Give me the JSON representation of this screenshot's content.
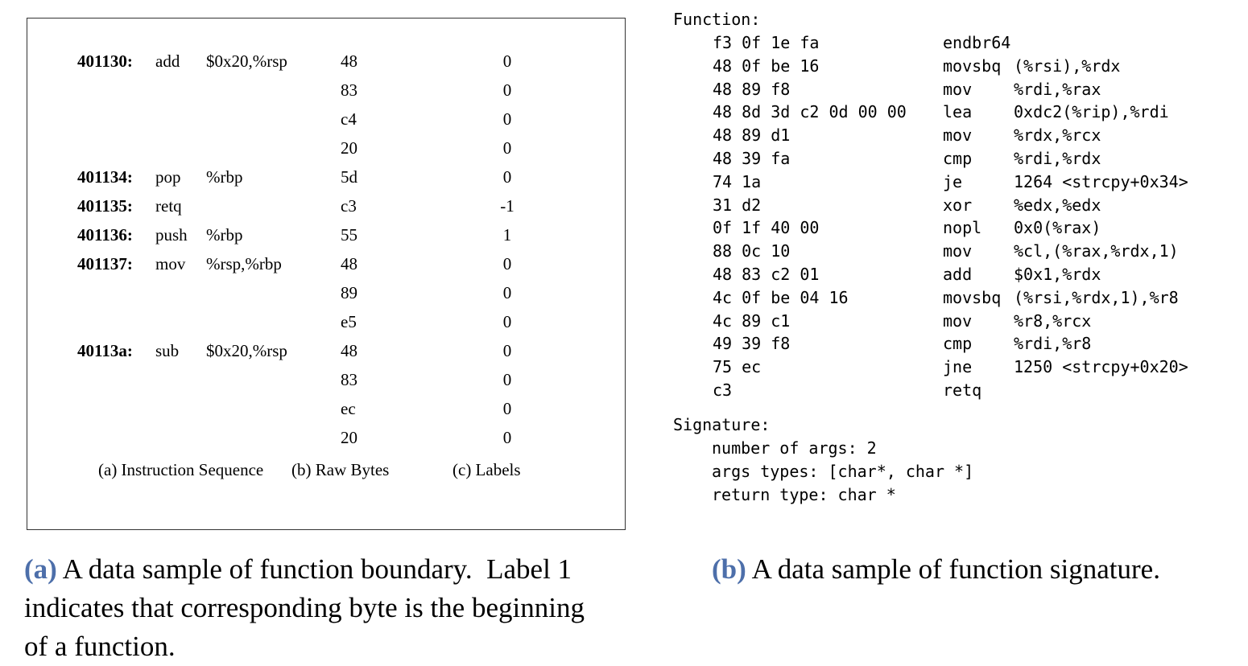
{
  "figure_a": {
    "instructions": [
      {
        "addr": "401130:",
        "mnemonic": "add",
        "operands": "$0x20,%rsp"
      },
      {
        "addr": "401134:",
        "mnemonic": "pop",
        "operands": "%rbp"
      },
      {
        "addr": "401135:",
        "mnemonic": "retq",
        "operands": ""
      },
      {
        "addr": "401136:",
        "mnemonic": "push",
        "operands": "%rbp"
      },
      {
        "addr": "401137:",
        "mnemonic": "mov",
        "operands": "%rsp,%rbp"
      },
      {
        "addr": "40113a:",
        "mnemonic": "sub",
        "operands": "$0x20,%rsp"
      }
    ],
    "raw_bytes": [
      "48",
      "83",
      "c4",
      "20",
      "5d",
      "c3",
      "55",
      "48",
      "89",
      "e5",
      "48",
      "83",
      "ec",
      "20"
    ],
    "labels": [
      "0",
      "0",
      "0",
      "0",
      "0",
      "-1",
      "1",
      "0",
      "0",
      "0",
      "0",
      "0",
      "0",
      "0"
    ],
    "subcaptions": {
      "a": "(a) Instruction Sequence",
      "b": "(b) Raw Bytes",
      "c": "(c) Labels"
    },
    "caption_tag": "(a)",
    "caption_lines": [
      " A data sample of function boundary.  Label 1",
      "indicates that corresponding byte is the beginning",
      "of a function."
    ]
  },
  "figure_b": {
    "function_header": "Function:",
    "asm": [
      {
        "bytes": "f3 0f 1e fa",
        "mnemonic": "endbr64",
        "operands": ""
      },
      {
        "bytes": "48 0f be 16",
        "mnemonic": "movsbq",
        "operands": "(%rsi),%rdx"
      },
      {
        "bytes": "48 89 f8",
        "mnemonic": "mov",
        "operands": "%rdi,%rax"
      },
      {
        "bytes": "48 8d 3d c2 0d 00 00",
        "mnemonic": "lea",
        "operands": "0xdc2(%rip),%rdi"
      },
      {
        "bytes": "48 89 d1",
        "mnemonic": "mov",
        "operands": "%rdx,%rcx"
      },
      {
        "bytes": "48 39 fa",
        "mnemonic": "cmp",
        "operands": "%rdi,%rdx"
      },
      {
        "bytes": "74 1a",
        "mnemonic": "je",
        "operands": "1264 <strcpy+0x34>"
      },
      {
        "bytes": "31 d2",
        "mnemonic": "xor",
        "operands": "%edx,%edx"
      },
      {
        "bytes": "0f 1f 40 00",
        "mnemonic": "nopl",
        "operands": "0x0(%rax)"
      },
      {
        "bytes": "88 0c 10",
        "mnemonic": "mov",
        "operands": "%cl,(%rax,%rdx,1)"
      },
      {
        "bytes": "48 83 c2 01",
        "mnemonic": "add",
        "operands": "$0x1,%rdx"
      },
      {
        "bytes": "4c 0f be 04 16",
        "mnemonic": "movsbq",
        "operands": "(%rsi,%rdx,1),%r8"
      },
      {
        "bytes": "4c 89 c1",
        "mnemonic": "mov",
        "operands": "%r8,%rcx"
      },
      {
        "bytes": "49 39 f8",
        "mnemonic": "cmp",
        "operands": "%rdi,%r8"
      },
      {
        "bytes": "75 ec",
        "mnemonic": "jne",
        "operands": "1250 <strcpy+0x20>"
      },
      {
        "bytes": "c3",
        "mnemonic": "retq",
        "operands": ""
      }
    ],
    "signature_header": "Signature:",
    "signature_lines": [
      "number of args: 2",
      "args types: [char*, char *]",
      "return type: char *"
    ],
    "caption_tag": "(b)",
    "caption_text": " A data sample of function signature."
  }
}
